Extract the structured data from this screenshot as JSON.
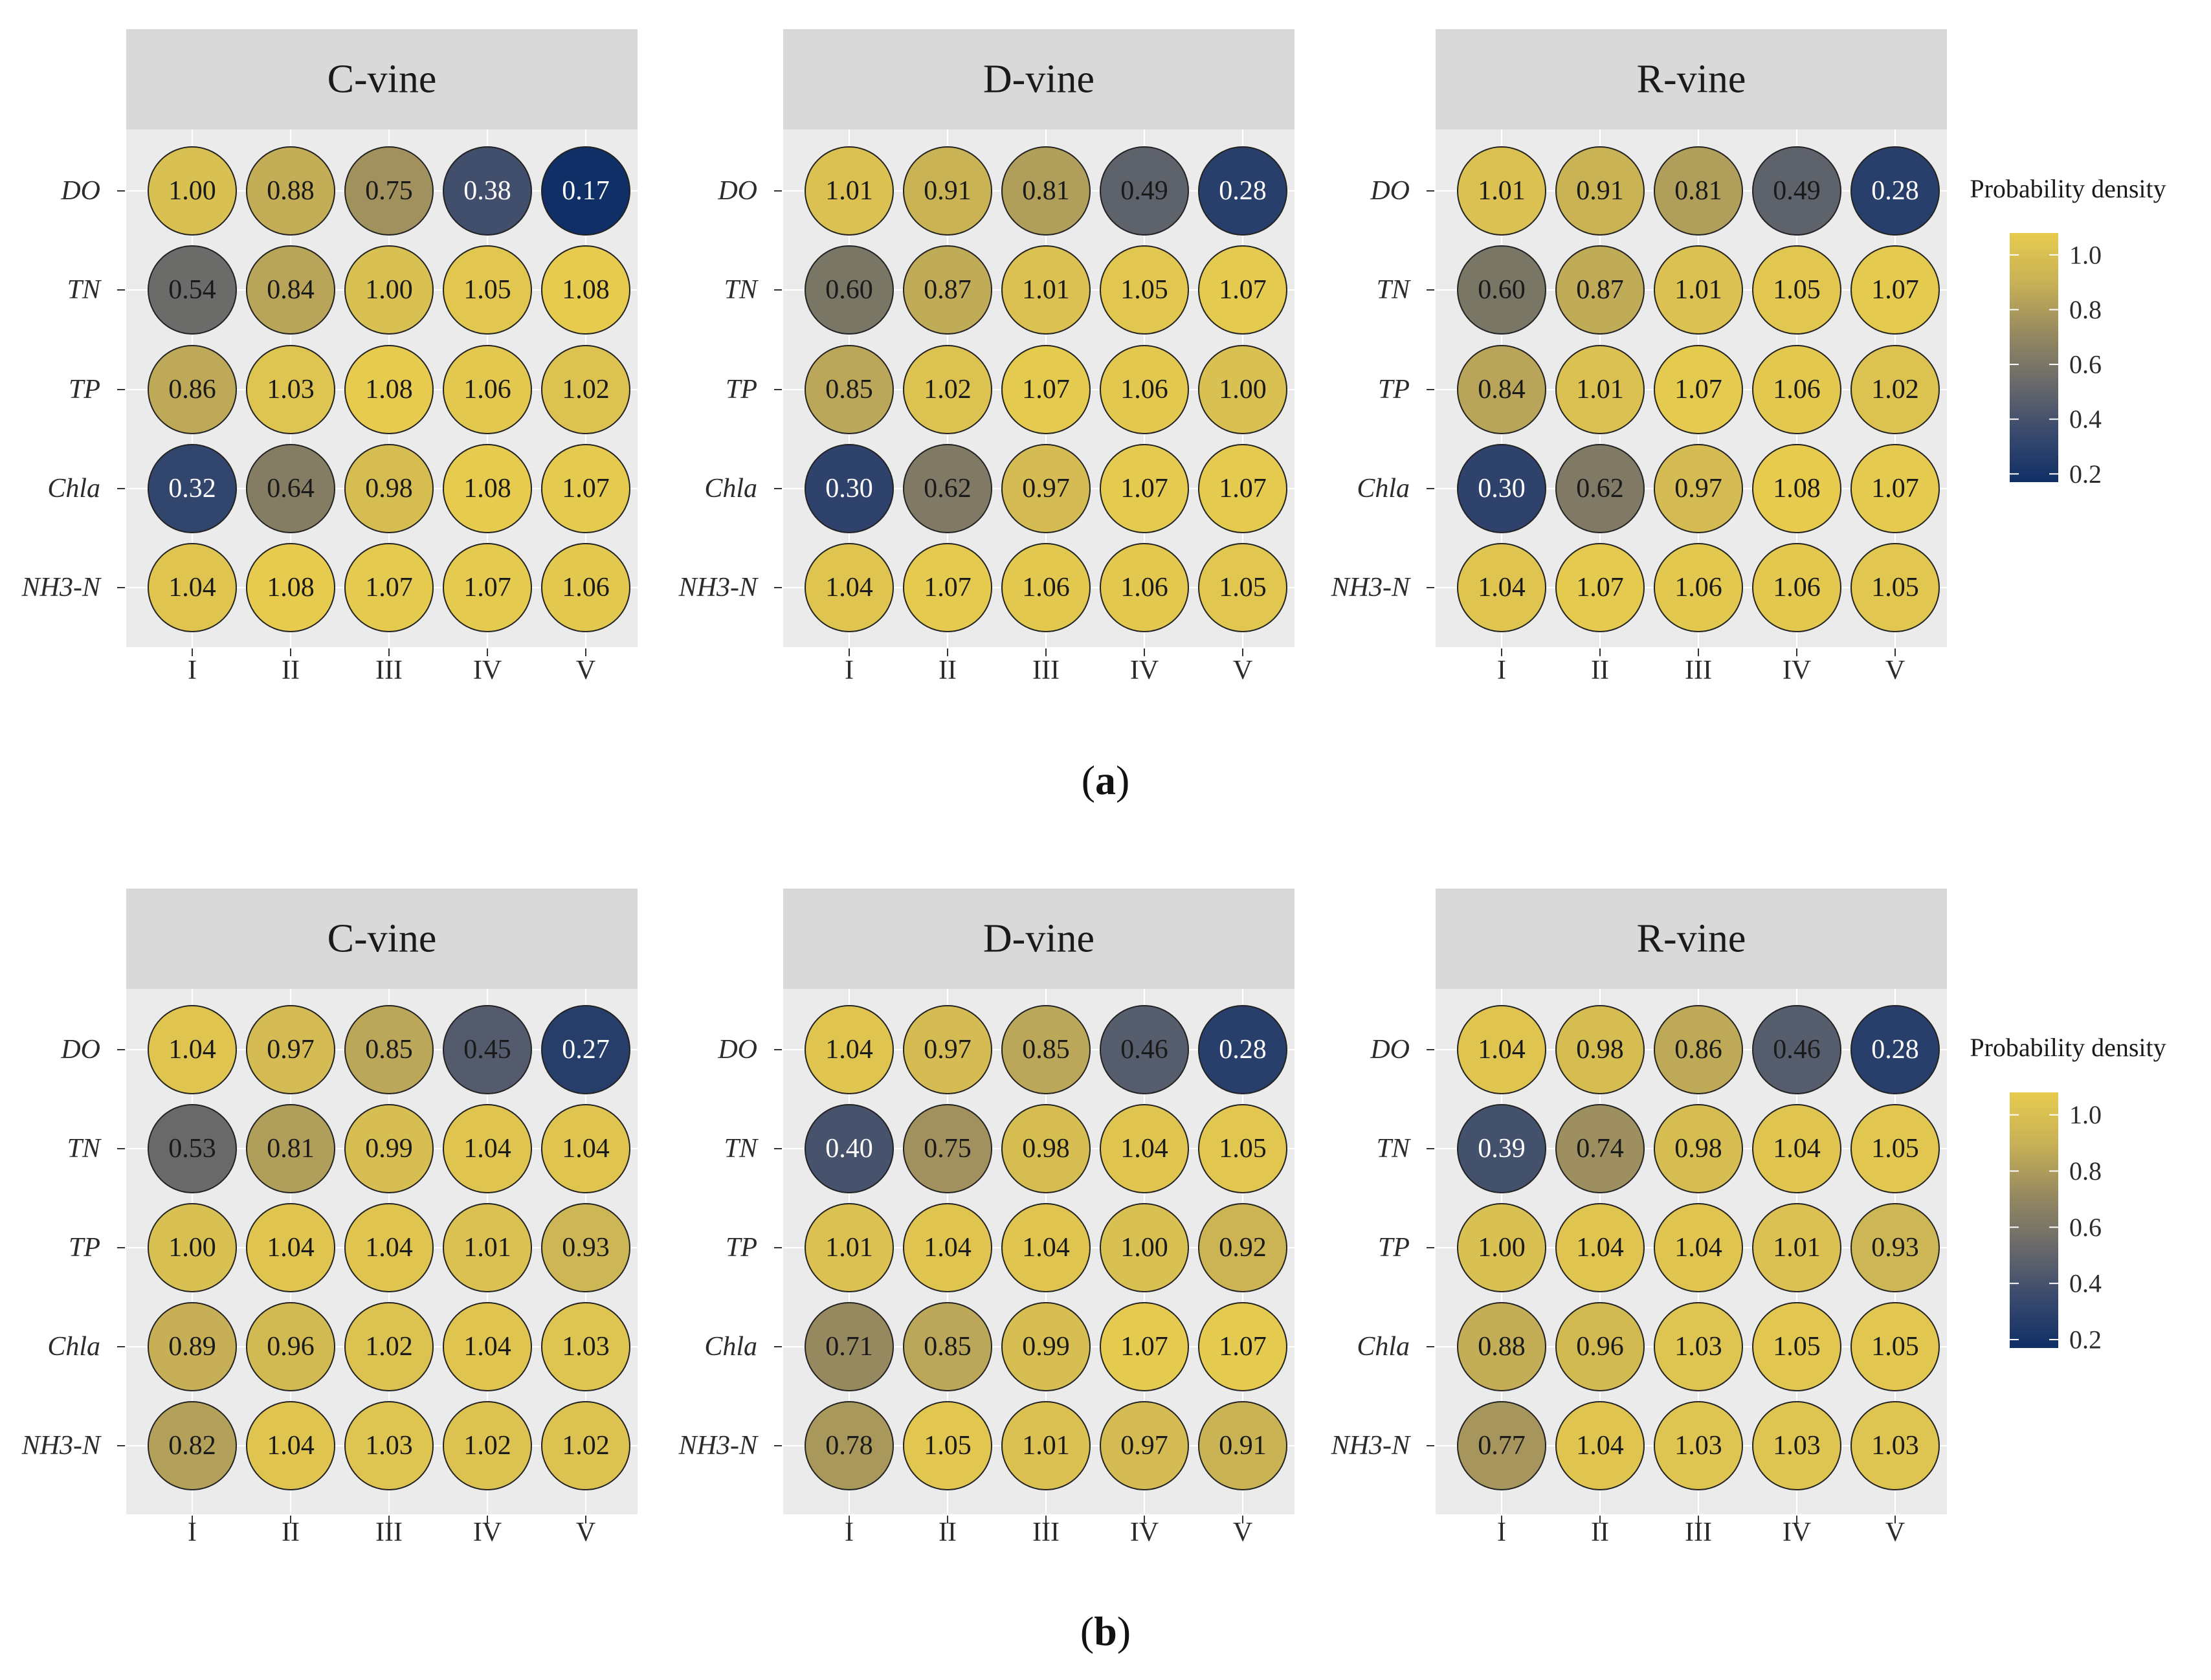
{
  "chart_data": [
    {
      "id": "a",
      "type": "heatmap",
      "caption_letter": "a",
      "caption_before": "(",
      "caption_after": ")",
      "rows": [
        "DO",
        "TN",
        "TP",
        "Chla",
        "NH3-N"
      ],
      "columns": [
        "I",
        "II",
        "III",
        "IV",
        "V"
      ],
      "legend": {
        "title": "Probability density",
        "ticks": [
          "1.0",
          "0.8",
          "0.6",
          "0.4",
          "0.2"
        ],
        "tick_values": [
          1.0,
          0.8,
          0.6,
          0.4,
          0.2
        ],
        "range": [
          0.17,
          1.08
        ]
      },
      "panels": [
        {
          "name": "C-vine",
          "values": [
            [
              1.0,
              0.88,
              0.75,
              0.38,
              0.17
            ],
            [
              0.54,
              0.84,
              1.0,
              1.05,
              1.08
            ],
            [
              0.86,
              1.03,
              1.08,
              1.06,
              1.02
            ],
            [
              0.32,
              0.64,
              0.98,
              1.08,
              1.07
            ],
            [
              1.04,
              1.08,
              1.07,
              1.07,
              1.06
            ]
          ]
        },
        {
          "name": "D-vine",
          "values": [
            [
              1.01,
              0.91,
              0.81,
              0.49,
              0.28
            ],
            [
              0.6,
              0.87,
              1.01,
              1.05,
              1.07
            ],
            [
              0.85,
              1.02,
              1.07,
              1.06,
              1.0
            ],
            [
              0.3,
              0.62,
              0.97,
              1.07,
              1.07
            ],
            [
              1.04,
              1.07,
              1.06,
              1.06,
              1.05
            ]
          ]
        },
        {
          "name": "R-vine",
          "values": [
            [
              1.01,
              0.91,
              0.81,
              0.49,
              0.28
            ],
            [
              0.6,
              0.87,
              1.01,
              1.05,
              1.07
            ],
            [
              0.84,
              1.01,
              1.07,
              1.06,
              1.02
            ],
            [
              0.3,
              0.62,
              0.97,
              1.08,
              1.07
            ],
            [
              1.04,
              1.07,
              1.06,
              1.06,
              1.05
            ]
          ]
        }
      ]
    },
    {
      "id": "b",
      "type": "heatmap",
      "caption_letter": "b",
      "caption_before": "(",
      "caption_after": ")",
      "rows": [
        "DO",
        "TN",
        "TP",
        "Chla",
        "NH3-N"
      ],
      "columns": [
        "I",
        "II",
        "III",
        "IV",
        "V"
      ],
      "legend": {
        "title": "Probability density",
        "ticks": [
          "1.0",
          "0.8",
          "0.6",
          "0.4",
          "0.2"
        ],
        "tick_values": [
          1.0,
          0.8,
          0.6,
          0.4,
          0.2
        ],
        "range": [
          0.17,
          1.08
        ]
      },
      "panels": [
        {
          "name": "C-vine",
          "values": [
            [
              1.04,
              0.97,
              0.85,
              0.45,
              0.27
            ],
            [
              0.53,
              0.81,
              0.99,
              1.04,
              1.04
            ],
            [
              1.0,
              1.04,
              1.04,
              1.01,
              0.93
            ],
            [
              0.89,
              0.96,
              1.02,
              1.04,
              1.03
            ],
            [
              0.82,
              1.04,
              1.03,
              1.02,
              1.02
            ]
          ]
        },
        {
          "name": "D-vine",
          "values": [
            [
              1.04,
              0.97,
              0.85,
              0.46,
              0.28
            ],
            [
              0.4,
              0.75,
              0.98,
              1.04,
              1.05
            ],
            [
              1.01,
              1.04,
              1.04,
              1.0,
              0.92
            ],
            [
              0.71,
              0.85,
              0.99,
              1.07,
              1.07
            ],
            [
              0.78,
              1.05,
              1.01,
              0.97,
              0.91
            ]
          ]
        },
        {
          "name": "R-vine",
          "values": [
            [
              1.04,
              0.98,
              0.86,
              0.46,
              0.28
            ],
            [
              0.39,
              0.74,
              0.98,
              1.04,
              1.05
            ],
            [
              1.0,
              1.04,
              1.04,
              1.01,
              0.93
            ],
            [
              0.88,
              0.96,
              1.03,
              1.05,
              1.05
            ],
            [
              0.77,
              1.04,
              1.03,
              1.03,
              1.03
            ]
          ]
        }
      ]
    }
  ],
  "colors": {
    "panel_bg": "#ebebeb",
    "strip_bg": "#d9d9d9",
    "gradient": [
      "#0f2f66",
      "#3a4a6e",
      "#6a6a6a",
      "#978a60",
      "#c8b156",
      "#e6cb4e"
    ],
    "grid": "#ffffff",
    "circle_stroke": "#222222",
    "light_text": "#ffffff",
    "dark_text": "#1a1a1a"
  }
}
